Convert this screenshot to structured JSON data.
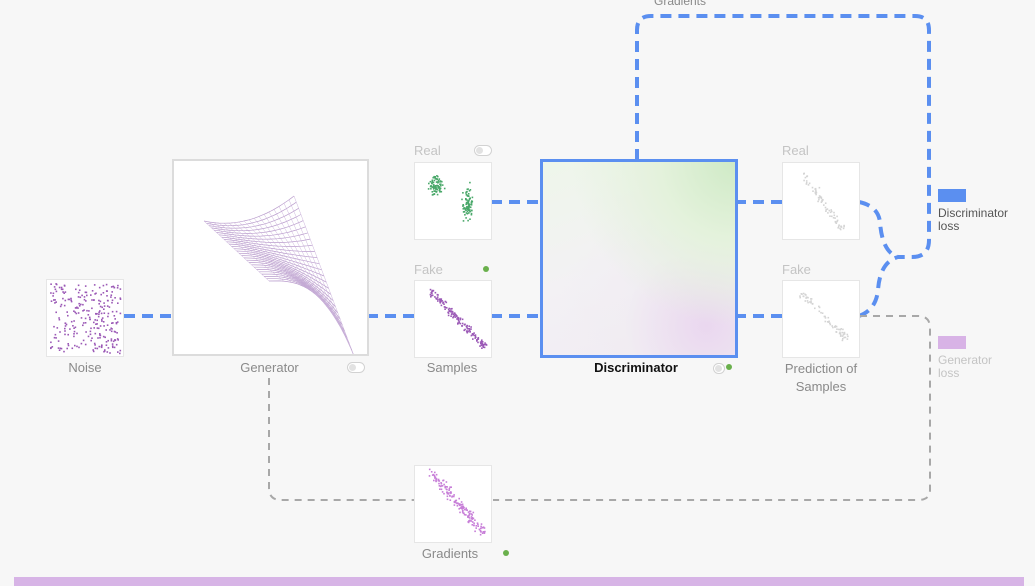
{
  "colors": {
    "discriminator_loss": "#5b8ff0",
    "generator_loss": "#d8b3e6",
    "real_points": "#4aa86a",
    "fake_points": "#9b59b6",
    "status_dot": "#6ab04c",
    "bottom_bar": "#d7b4e6"
  },
  "labels": {
    "gradients_top": "Gradients",
    "real_samples": "Real",
    "fake_samples": "Fake",
    "real_pred": "Real",
    "fake_pred": "Fake",
    "noise": "Noise",
    "generator": "Generator",
    "samples": "Samples",
    "discriminator": "Discriminator",
    "prediction_line1": "Prediction of",
    "prediction_line2": "Samples",
    "gradients_bottom": "Gradients"
  },
  "legend": {
    "discriminator_loss": {
      "line1": "Discriminator",
      "line2": "loss"
    },
    "generator_loss": {
      "line1": "Generator",
      "line2": "loss"
    }
  },
  "icons": {
    "generator_toggle": "toggle-icon",
    "real_toggle": "toggle-icon",
    "fake_status": "status-dot-icon",
    "discriminator_status": "status-dot-icon",
    "gradients_status": "status-dot-icon"
  }
}
